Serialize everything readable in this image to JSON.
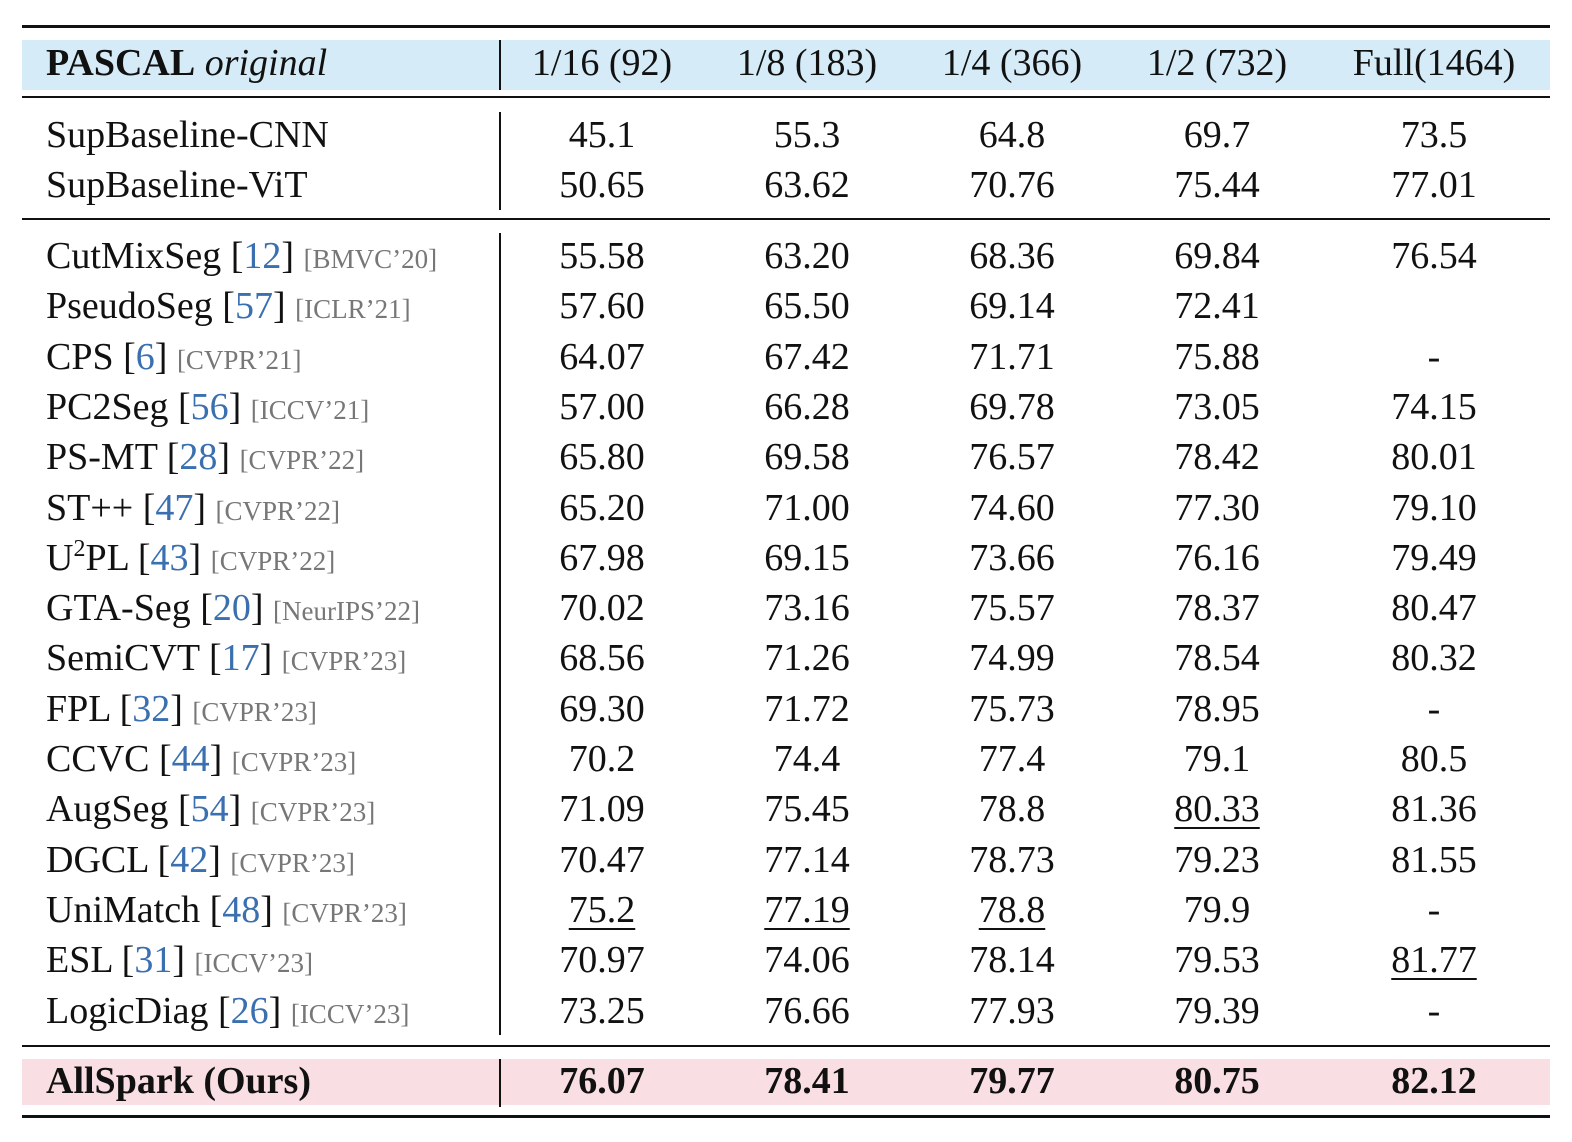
{
  "header": {
    "dataset": "PASCAL",
    "dataset_variant": "original",
    "columns": [
      "1/16 (92)",
      "1/8 (183)",
      "1/4 (366)",
      "1/2 (732)",
      "Full(1464)"
    ]
  },
  "colors": {
    "header_band": "#d5ebf7",
    "ours_band": "#f9dfe3",
    "reference": "#3a6fb0",
    "venue": "#777777"
  },
  "baselines": [
    {
      "method": "SupBaseline-CNN",
      "values": [
        "45.1",
        "55.3",
        "64.8",
        "69.7",
        "73.5"
      ]
    },
    {
      "method": "SupBaseline-ViT",
      "values": [
        "50.65",
        "63.62",
        "70.76",
        "75.44",
        "77.01"
      ]
    }
  ],
  "methods": [
    {
      "method": "CutMixSeg",
      "ref": "12",
      "venue": "[BMVC’20]",
      "values": [
        "55.58",
        "63.20",
        "68.36",
        "69.84",
        "76.54"
      ]
    },
    {
      "method": "PseudoSeg",
      "ref": "57",
      "venue": "[ICLR’21]",
      "values": [
        "57.60",
        "65.50",
        "69.14",
        "72.41",
        ""
      ]
    },
    {
      "method": "CPS",
      "ref": "6",
      "venue": "[CVPR’21]",
      "values": [
        "64.07",
        "67.42",
        "71.71",
        "75.88",
        "-"
      ]
    },
    {
      "method": "PC2Seg",
      "ref": "56",
      "venue": "[ICCV’21]",
      "values": [
        "57.00",
        "66.28",
        "69.78",
        "73.05",
        "74.15"
      ]
    },
    {
      "method": "PS-MT",
      "ref": "28",
      "venue": "[CVPR’22]",
      "values": [
        "65.80",
        "69.58",
        "76.57",
        "78.42",
        "80.01"
      ]
    },
    {
      "method": "ST++",
      "ref": "47",
      "venue": "[CVPR’22]",
      "values": [
        "65.20",
        "71.00",
        "74.60",
        "77.30",
        "79.10"
      ]
    },
    {
      "method": "U",
      "method_sup": "2",
      "method_suffix": "PL",
      "ref": "43",
      "venue": "[CVPR’22]",
      "values": [
        "67.98",
        "69.15",
        "73.66",
        "76.16",
        "79.49"
      ]
    },
    {
      "method": "GTA-Seg",
      "ref": "20",
      "venue": "[NeurIPS’22]",
      "values": [
        "70.02",
        "73.16",
        "75.57",
        "78.37",
        "80.47"
      ]
    },
    {
      "method": "SemiCVT",
      "ref": "17",
      "venue": "[CVPR’23]",
      "values": [
        "68.56",
        "71.26",
        "74.99",
        "78.54",
        "80.32"
      ]
    },
    {
      "method": "FPL",
      "ref": "32",
      "venue": "[CVPR’23]",
      "values": [
        "69.30",
        "71.72",
        "75.73",
        "78.95",
        "-"
      ]
    },
    {
      "method": "CCVC",
      "ref": "44",
      "venue": "[CVPR’23]",
      "values": [
        "70.2",
        "74.4",
        "77.4",
        "79.1",
        "80.5"
      ]
    },
    {
      "method": "AugSeg",
      "ref": "54",
      "venue": "[CVPR’23]",
      "values": [
        "71.09",
        "75.45",
        "78.8",
        "80.33",
        "81.36"
      ],
      "underline": [
        3
      ]
    },
    {
      "method": "DGCL",
      "ref": "42",
      "venue": "[CVPR’23]",
      "values": [
        "70.47",
        "77.14",
        "78.73",
        "79.23",
        "81.55"
      ]
    },
    {
      "method": "UniMatch",
      "ref": "48",
      "venue": "[CVPR’23]",
      "values": [
        "75.2",
        "77.19",
        "78.8",
        "79.9",
        "-"
      ],
      "underline": [
        0,
        1,
        2
      ]
    },
    {
      "method": "ESL",
      "ref": "31",
      "venue": "[ICCV’23]",
      "values": [
        "70.97",
        "74.06",
        "78.14",
        "79.53",
        "81.77"
      ],
      "underline": [
        4
      ]
    },
    {
      "method": "LogicDiag",
      "ref": "26",
      "venue": "[ICCV’23]",
      "values": [
        "73.25",
        "76.66",
        "77.93",
        "79.39",
        "-"
      ]
    }
  ],
  "ours": {
    "method": "AllSpark (Ours)",
    "values": [
      "76.07",
      "78.41",
      "79.77",
      "80.75",
      "82.12"
    ]
  }
}
